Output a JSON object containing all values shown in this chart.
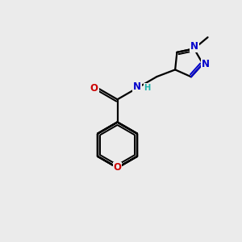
{
  "background_color": "#ebebeb",
  "atom_colors": {
    "C": "#000000",
    "N": "#0000cc",
    "O": "#cc0000",
    "H": "#20b2aa"
  },
  "figsize": [
    3.0,
    3.0
  ],
  "dpi": 100,
  "bond_lw": 1.6,
  "font_size": 8.5
}
